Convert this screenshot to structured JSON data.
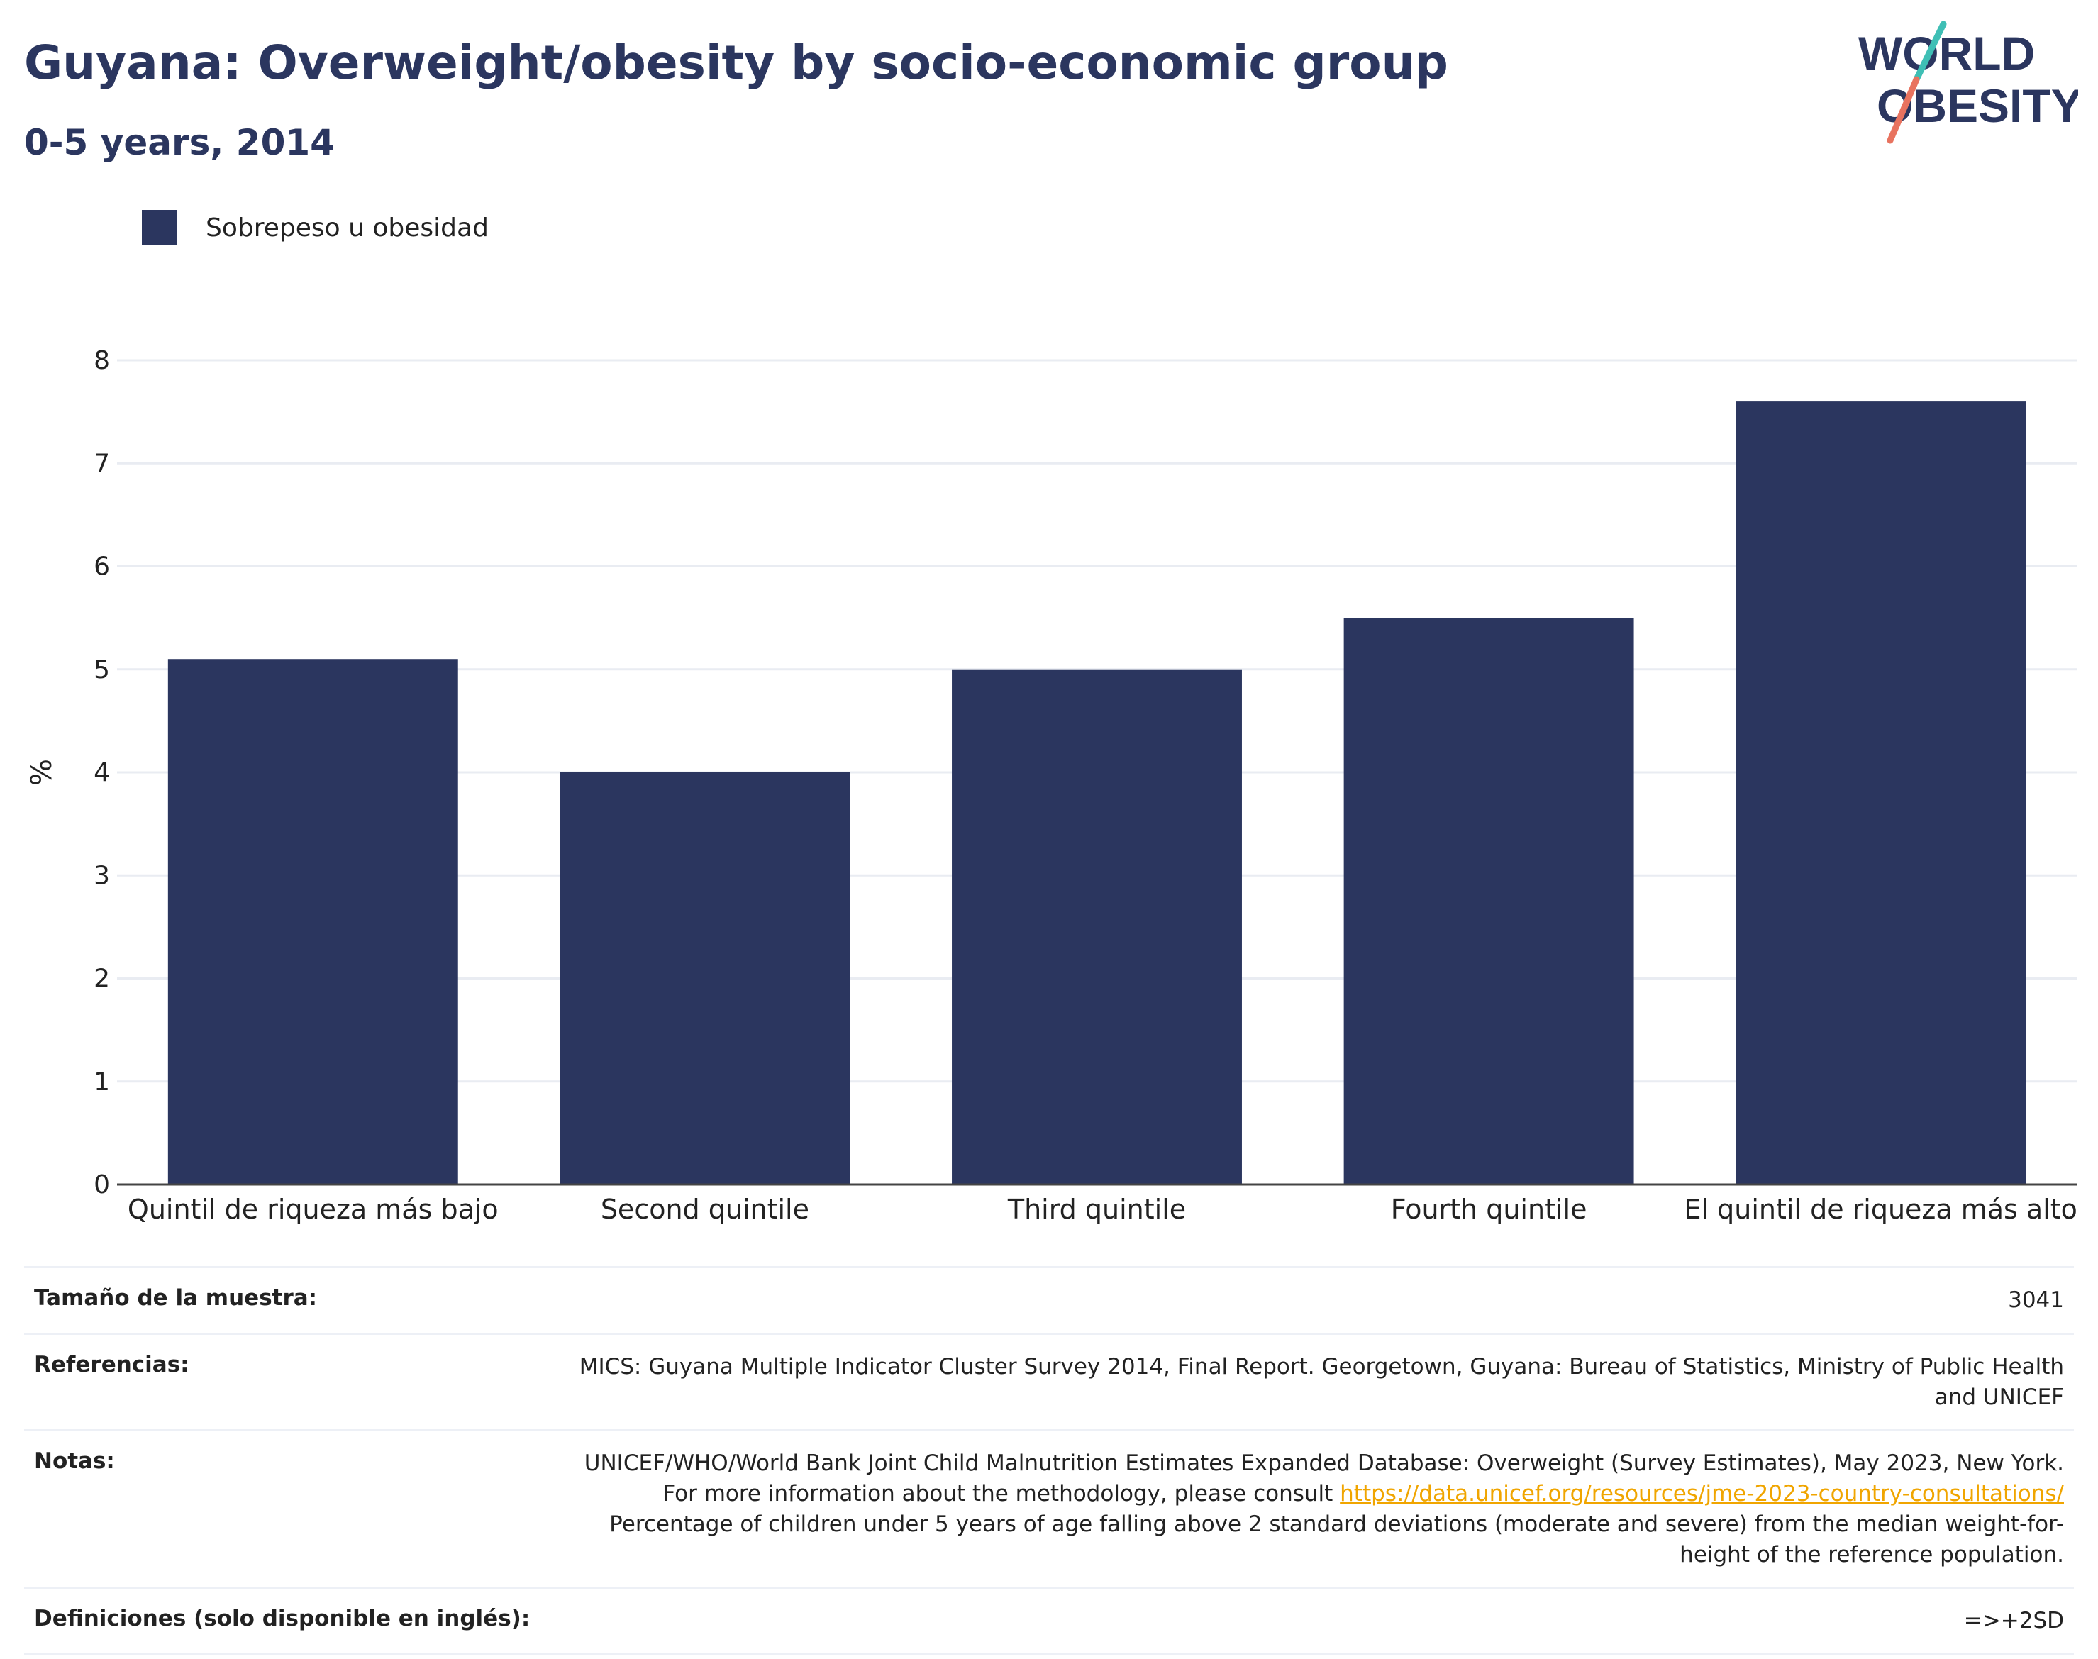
{
  "header": {
    "title": "Guyana: Overweight/obesity by socio-economic group",
    "subtitle": "0-5 years, 2014"
  },
  "logo": {
    "line1": "WORLD",
    "line2": "OBESITY"
  },
  "colors": {
    "bar": "#2b365f",
    "title": "#2b365f",
    "link": "#f0a500",
    "logo_teal": "#3fbfb5",
    "logo_coral": "#e8735f"
  },
  "chart_data": {
    "type": "bar",
    "categories": [
      "Quintil de riqueza más bajo",
      "Second quintile",
      "Third quintile",
      "Fourth quintile",
      "El quintil de riqueza más alto"
    ],
    "series": [
      {
        "name": "Sobrepeso u obesidad",
        "values": [
          5.1,
          4.0,
          5.0,
          5.5,
          7.6
        ]
      }
    ],
    "ylabel": "%",
    "ylim": [
      0,
      8
    ],
    "yticks": [
      0,
      1,
      2,
      3,
      4,
      5,
      6,
      7,
      8
    ],
    "grid": true,
    "legend": "top-left"
  },
  "footer": {
    "sample_label": "Tamaño de la muestra:",
    "sample_value": "3041",
    "references_label": "Referencias:",
    "references_value": "MICS: Guyana Multiple Indicator Cluster Survey 2014, Final Report. Georgetown, Guyana: Bureau of Statistics, Ministry of Public Health and UNICEF",
    "notes_label": "Notas:",
    "notes_text1": "UNICEF/WHO/World Bank Joint Child Malnutrition Estimates Expanded Database: Overweight (Survey Estimates), May 2023, New York. For more information about the methodology, please consult ",
    "notes_link": "https://data.unicef.org/resources/jme-2023-country-consultations/",
    "notes_text2": " Percentage of children under 5 years of age falling above 2 standard deviations (moderate and severe) from the median weight-for-height of the reference population.",
    "definitions_label": "Definiciones (solo disponible en inglés):",
    "definitions_value": "=>+2SD"
  }
}
